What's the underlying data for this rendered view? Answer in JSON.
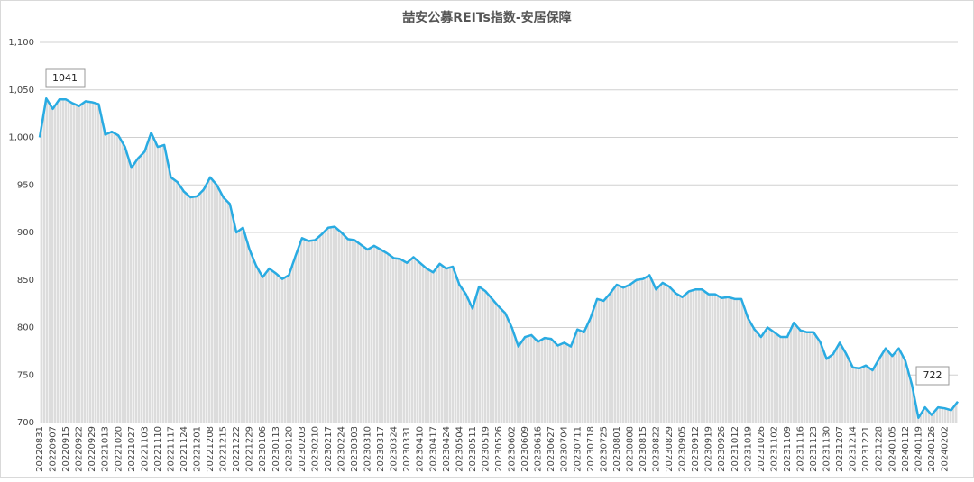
{
  "chart_data": {
    "type": "line",
    "title": "喆安公募REITs指数-安居保障",
    "categories": [
      "20220831",
      null,
      "20220907",
      null,
      "20220915",
      null,
      "20220922",
      null,
      "20220929",
      null,
      "20221013",
      null,
      "20221020",
      null,
      "20221027",
      null,
      "20221103",
      null,
      "20221110",
      null,
      "20221117",
      null,
      "20221124",
      null,
      "20221201",
      null,
      "20221208",
      null,
      "20221215",
      null,
      "20221222",
      null,
      "20221229",
      null,
      "20230106",
      null,
      "20230113",
      null,
      "20230120",
      null,
      "20230203",
      null,
      "20230210",
      null,
      "20230217",
      null,
      "20230224",
      null,
      "20230303",
      null,
      "20230310",
      null,
      "20230317",
      null,
      "20230324",
      null,
      "20230331",
      null,
      "20230410",
      null,
      "20230417",
      null,
      "20230424",
      null,
      "20230504",
      null,
      "20230511",
      null,
      "20230519",
      null,
      "20230526",
      null,
      "20230602",
      null,
      "20230609",
      null,
      "20230616",
      null,
      "20230627",
      null,
      "20230704",
      null,
      "20230711",
      null,
      "20230718",
      null,
      "20230725",
      null,
      "20230801",
      null,
      "20230808",
      null,
      "20230815",
      null,
      "20230822",
      null,
      "20230829",
      null,
      "20230905",
      null,
      "20230912",
      null,
      "20230919",
      null,
      "20230926",
      null,
      "20231012",
      null,
      "20231019",
      null,
      "20231026",
      null,
      "20231102",
      null,
      "20231109",
      null,
      "20231116",
      null,
      "20231123",
      null,
      "20231130",
      null,
      "20231207",
      null,
      "20231214",
      null,
      "20231221",
      null,
      "20231228",
      null,
      "20240105",
      null,
      "20240112",
      null,
      "20240119",
      null,
      "20240126",
      null,
      "20240202",
      null,
      null
    ],
    "series": [
      {
        "name": "喆安公募REITs指数-安居保障",
        "color": "#29abe2",
        "values": [
          1000,
          1041,
          1030,
          1040,
          1040,
          1036,
          1033,
          1038,
          1037,
          1035,
          1003,
          1006,
          1002,
          990,
          968,
          978,
          985,
          1005,
          990,
          992,
          958,
          953,
          943,
          937,
          938,
          945,
          958,
          950,
          937,
          930,
          900,
          905,
          882,
          865,
          853,
          862,
          857,
          851,
          855,
          875,
          894,
          891,
          892,
          898,
          905,
          906,
          900,
          893,
          892,
          887,
          882,
          886,
          882,
          878,
          873,
          872,
          868,
          874,
          868,
          862,
          858,
          867,
          862,
          864,
          845,
          835,
          820,
          843,
          838,
          830,
          822,
          815,
          800,
          780,
          790,
          792,
          785,
          789,
          788,
          781,
          784,
          780,
          798,
          795,
          810,
          830,
          828,
          836,
          845,
          842,
          845,
          850,
          851,
          855,
          840,
          847,
          843,
          836,
          832,
          838,
          840,
          840,
          835,
          835,
          831,
          832,
          830,
          830,
          810,
          798,
          790,
          800,
          795,
          790,
          790,
          805,
          797,
          795,
          795,
          785,
          767,
          772,
          784,
          772,
          758,
          757,
          760,
          755,
          767,
          778,
          770,
          778,
          765,
          740,
          705,
          716,
          708,
          716,
          715,
          713,
          722
        ]
      }
    ],
    "ylim": [
      700,
      1100
    ],
    "yticks": [
      700,
      750,
      800,
      850,
      900,
      950,
      {
        "value": 1000,
        "label": "1,000"
      },
      {
        "value": 1050,
        "label": "1,050"
      },
      {
        "value": 1100,
        "label": "1,100"
      }
    ],
    "grid": true,
    "annotations": [
      "1041",
      "722"
    ]
  }
}
